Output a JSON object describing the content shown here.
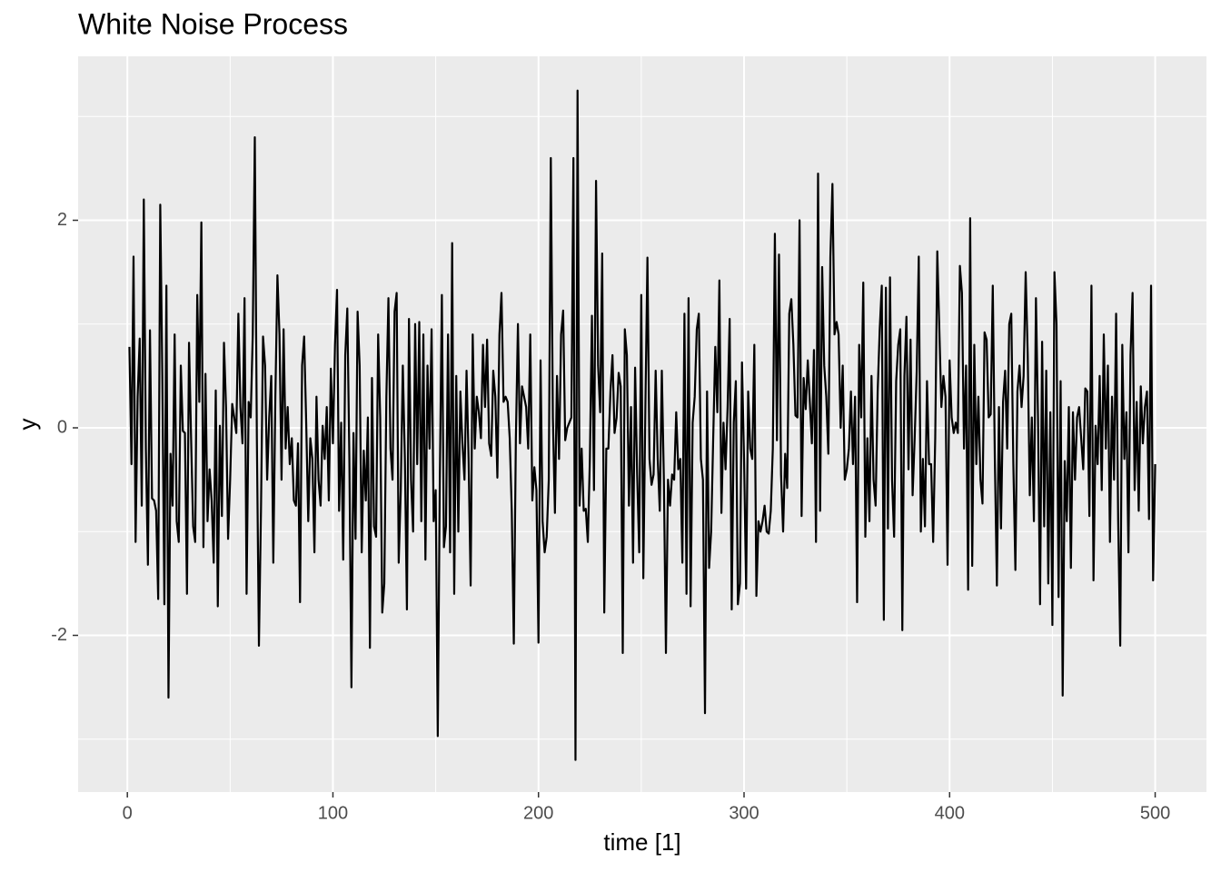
{
  "chart_data": {
    "type": "line",
    "title": "White Noise Process",
    "x_label": "time [1]",
    "y_label": "y",
    "color": "#000000",
    "grid": true,
    "xlim": [
      -23.95,
      524.95
    ],
    "ylim": [
      -3.51,
      3.58
    ],
    "xticks": [
      0,
      100,
      200,
      300,
      400,
      500
    ],
    "yticks": [
      -2,
      0,
      2
    ],
    "xminor": [
      50,
      150,
      250,
      350,
      450
    ],
    "yminor": [
      -3,
      -1,
      1,
      3
    ],
    "x": [
      1,
      2,
      3,
      4,
      5,
      6,
      7,
      8,
      9,
      10,
      11,
      12,
      13,
      14,
      15,
      16,
      17,
      18,
      19,
      20,
      21,
      22,
      23,
      24,
      25,
      26,
      27,
      28,
      29,
      30,
      31,
      32,
      33,
      34,
      35,
      36,
      37,
      38,
      39,
      40,
      41,
      42,
      43,
      44,
      45,
      46,
      47,
      48,
      49,
      50,
      51,
      52,
      53,
      54,
      55,
      56,
      57,
      58,
      59,
      60,
      61,
      62,
      63,
      64,
      65,
      66,
      67,
      68,
      69,
      70,
      71,
      72,
      73,
      74,
      75,
      76,
      77,
      78,
      79,
      80,
      81,
      82,
      83,
      84,
      85,
      86,
      87,
      88,
      89,
      90,
      91,
      92,
      93,
      94,
      95,
      96,
      97,
      98,
      99,
      100,
      101,
      102,
      103,
      104,
      105,
      106,
      107,
      108,
      109,
      110,
      111,
      112,
      113,
      114,
      115,
      116,
      117,
      118,
      119,
      120,
      121,
      122,
      123,
      124,
      125,
      126,
      127,
      128,
      129,
      130,
      131,
      132,
      133,
      134,
      135,
      136,
      137,
      138,
      139,
      140,
      141,
      142,
      143,
      144,
      145,
      146,
      147,
      148,
      149,
      150,
      151,
      152,
      153,
      154,
      155,
      156,
      157,
      158,
      159,
      160,
      161,
      162,
      163,
      164,
      165,
      166,
      167,
      168,
      169,
      170,
      171,
      172,
      173,
      174,
      175,
      176,
      177,
      178,
      179,
      180,
      181,
      182,
      183,
      184,
      185,
      186,
      187,
      188,
      189,
      190,
      191,
      192,
      193,
      194,
      195,
      196,
      197,
      198,
      199,
      200,
      201,
      202,
      203,
      204,
      205,
      206,
      207,
      208,
      209,
      210,
      211,
      212,
      213,
      214,
      215,
      216,
      217,
      218,
      219,
      220,
      221,
      222,
      223,
      224,
      225,
      226,
      227,
      228,
      229,
      230,
      231,
      232,
      233,
      234,
      235,
      236,
      237,
      238,
      239,
      240,
      241,
      242,
      243,
      244,
      245,
      246,
      247,
      248,
      249,
      250,
      251,
      252,
      253,
      254,
      255,
      256,
      257,
      258,
      259,
      260,
      261,
      262,
      263,
      264,
      265,
      266,
      267,
      268,
      269,
      270,
      271,
      272,
      273,
      274,
      275,
      276,
      277,
      278,
      279,
      280,
      281,
      282,
      283,
      284,
      285,
      286,
      287,
      288,
      289,
      290,
      291,
      292,
      293,
      294,
      295,
      296,
      297,
      298,
      299,
      300,
      301,
      302,
      303,
      304,
      305,
      306,
      307,
      308,
      309,
      310,
      311,
      312,
      313,
      314,
      315,
      316,
      317,
      318,
      319,
      320,
      321,
      322,
      323,
      324,
      325,
      326,
      327,
      328,
      329,
      330,
      331,
      332,
      333,
      334,
      335,
      336,
      337,
      338,
      339,
      340,
      341,
      342,
      343,
      344,
      345,
      346,
      347,
      348,
      349,
      350,
      351,
      352,
      353,
      354,
      355,
      356,
      357,
      358,
      359,
      360,
      361,
      362,
      363,
      364,
      365,
      366,
      367,
      368,
      369,
      370,
      371,
      372,
      373,
      374,
      375,
      376,
      377,
      378,
      379,
      380,
      381,
      382,
      383,
      384,
      385,
      386,
      387,
      388,
      389,
      390,
      391,
      392,
      393,
      394,
      395,
      396,
      397,
      398,
      399,
      400,
      401,
      402,
      403,
      404,
      405,
      406,
      407,
      408,
      409,
      410,
      411,
      412,
      413,
      414,
      415,
      416,
      417,
      418,
      419,
      420,
      421,
      422,
      423,
      424,
      425,
      426,
      427,
      428,
      429,
      430,
      431,
      432,
      433,
      434,
      435,
      436,
      437,
      438,
      439,
      440,
      441,
      442,
      443,
      444,
      445,
      446,
      447,
      448,
      449,
      450,
      451,
      452,
      453,
      454,
      455,
      456,
      457,
      458,
      459,
      460,
      461,
      462,
      463,
      464,
      465,
      466,
      467,
      468,
      469,
      470,
      471,
      472,
      473,
      474,
      475,
      476,
      477,
      478,
      479,
      480,
      481,
      482,
      483,
      484,
      485,
      486,
      487,
      488,
      489,
      490,
      491,
      492,
      493,
      494,
      495,
      496,
      497,
      498,
      499,
      500
    ],
    "values": [
      0.78,
      -0.35,
      1.65,
      -1.1,
      0.3,
      0.86,
      -0.75,
      2.2,
      -0.2,
      -1.32,
      0.94,
      -0.68,
      -0.7,
      -0.8,
      -1.65,
      2.15,
      0.5,
      -1.7,
      1.37,
      -2.6,
      -0.25,
      -0.75,
      0.9,
      -0.9,
      -1.1,
      0.6,
      -0.03,
      -0.05,
      -1.6,
      0.82,
      -0.1,
      -0.95,
      -1.1,
      1.28,
      0.25,
      1.98,
      -1.15,
      0.52,
      -0.9,
      -0.4,
      -0.7,
      -1.3,
      0.36,
      -1.72,
      0.02,
      -0.85,
      0.82,
      0.2,
      -1.07,
      -0.5,
      0.23,
      0.1,
      -0.05,
      1.1,
      0.2,
      -0.15,
      1.25,
      -1.6,
      0.25,
      0.1,
      0.9,
      2.8,
      -0.1,
      -2.1,
      -0.8,
      0.88,
      0.6,
      -0.5,
      0.1,
      0.5,
      -1.3,
      0.3,
      1.47,
      0.9,
      -0.5,
      0.95,
      -0.2,
      0.2,
      -0.35,
      -0.1,
      -0.7,
      -0.75,
      -0.15,
      -1.68,
      0.6,
      0.88,
      0.05,
      -0.9,
      -0.1,
      -0.3,
      -1.2,
      0.3,
      -0.5,
      -0.75,
      0.02,
      -0.3,
      0.2,
      -0.7,
      0.57,
      -0.15,
      0.8,
      1.33,
      -0.8,
      0.05,
      -1.27,
      0.7,
      1.15,
      -0.3,
      -2.5,
      -0.05,
      -1.07,
      1.12,
      0.6,
      -1.2,
      -0.22,
      -0.7,
      0.1,
      -2.12,
      0.48,
      -0.95,
      -1.05,
      0.9,
      0.1,
      -1.78,
      -1.5,
      0.3,
      1.25,
      -0.2,
      -0.5,
      1.12,
      1.3,
      -1.3,
      -0.6,
      0.6,
      -0.3,
      -1.75,
      1.05,
      -0.5,
      -1.0,
      1.0,
      -0.35,
      1.02,
      -0.9,
      0.9,
      -1.27,
      0.6,
      -0.2,
      0.95,
      -0.9,
      -0.6,
      -2.97,
      -0.5,
      1.28,
      -1.15,
      -0.95,
      0.9,
      -1.2,
      1.78,
      -1.6,
      0.5,
      -1.0,
      0.35,
      -0.15,
      -0.5,
      0.55,
      -0.3,
      -1.52,
      0.9,
      -0.2,
      0.3,
      0.15,
      -0.1,
      0.8,
      0.2,
      0.85,
      -0.15,
      -0.27,
      0.55,
      0.3,
      -0.48,
      0.9,
      1.3,
      0.25,
      0.3,
      0.25,
      -0.1,
      -0.8,
      -2.08,
      -0.1,
      1.0,
      -0.15,
      0.4,
      0.3,
      0.2,
      -0.2,
      0.9,
      -0.7,
      -0.38,
      -0.6,
      -2.07,
      0.65,
      -0.9,
      -1.2,
      -1.05,
      -0.5,
      2.6,
      0.1,
      -0.82,
      0.5,
      -0.3,
      0.9,
      1.13,
      -0.12,
      0.0,
      0.05,
      0.1,
      2.6,
      -3.2,
      3.25,
      -0.75,
      -0.2,
      -0.8,
      -0.78,
      -1.1,
      -0.3,
      1.08,
      -0.6,
      2.38,
      0.6,
      0.15,
      1.68,
      -1.78,
      -0.2,
      -0.2,
      0.35,
      0.7,
      -0.05,
      0.1,
      0.53,
      0.4,
      -2.17,
      0.95,
      0.7,
      -0.75,
      0.2,
      -1.3,
      0.58,
      -0.45,
      -1.2,
      1.28,
      -1.45,
      0.2,
      1.64,
      -0.3,
      -0.55,
      -0.45,
      0.55,
      -0.3,
      -0.8,
      0.55,
      -0.5,
      -2.17,
      -0.5,
      -0.75,
      -0.45,
      -0.5,
      0.15,
      -0.4,
      -0.3,
      -1.3,
      1.1,
      -1.6,
      1.25,
      -1.72,
      0.05,
      0.3,
      0.95,
      1.1,
      -0.3,
      -0.5,
      -2.75,
      0.35,
      -1.35,
      -1.0,
      -0.1,
      0.78,
      0.15,
      1.42,
      -0.82,
      0.05,
      -0.4,
      0.2,
      1.05,
      -1.75,
      0.05,
      0.45,
      -1.7,
      -1.5,
      0.63,
      -0.3,
      -1.55,
      0.35,
      -0.2,
      -0.3,
      0.8,
      -1.62,
      -0.9,
      -1.0,
      -0.9,
      -0.75,
      -1.0,
      -1.02,
      -0.8,
      -0.2,
      1.87,
      -0.12,
      1.67,
      -0.45,
      -1.0,
      -0.25,
      -0.58,
      1.1,
      1.24,
      0.8,
      0.12,
      0.1,
      2.0,
      -0.85,
      0.48,
      0.18,
      0.65,
      0.25,
      -0.15,
      0.75,
      -1.1,
      2.45,
      -0.8,
      1.55,
      0.6,
      0.3,
      -0.25,
      1.65,
      2.35,
      0.9,
      1.02,
      0.9,
      0.0,
      0.6,
      -0.5,
      -0.4,
      -0.2,
      0.35,
      -0.35,
      0.3,
      -1.68,
      0.8,
      0.1,
      1.4,
      -1.05,
      -0.1,
      -0.9,
      0.5,
      -0.5,
      -0.75,
      0.35,
      0.95,
      1.37,
      -1.85,
      1.35,
      -0.97,
      1.45,
      -0.5,
      -1.05,
      0.45,
      0.8,
      0.95,
      -1.95,
      0.5,
      1.07,
      -0.4,
      0.85,
      -0.65,
      -0.1,
      0.55,
      1.65,
      -1.0,
      -0.3,
      -0.95,
      0.45,
      -0.35,
      -0.35,
      -1.1,
      -0.1,
      1.7,
      0.95,
      0.2,
      0.5,
      0.3,
      -1.32,
      0.65,
      0.1,
      -0.05,
      0.05,
      -0.05,
      1.56,
      1.3,
      -0.2,
      0.6,
      -1.56,
      2.02,
      -1.33,
      0.8,
      -0.35,
      0.3,
      -0.5,
      -0.73,
      0.92,
      0.85,
      0.1,
      0.13,
      1.37,
      -0.3,
      -1.52,
      0.2,
      -0.97,
      0.25,
      0.55,
      -0.2,
      1.0,
      1.1,
      -0.35,
      -1.37,
      0.35,
      0.6,
      0.2,
      0.5,
      1.5,
      0.7,
      -0.65,
      0.1,
      -0.9,
      1.25,
      0.1,
      -1.7,
      0.83,
      -0.95,
      0.55,
      -1.5,
      0.15,
      -1.9,
      1.5,
      1.0,
      -1.63,
      0.45,
      -2.58,
      -0.32,
      -0.9,
      0.2,
      -1.35,
      0.15,
      -0.5,
      0.1,
      0.2,
      -0.1,
      -0.4,
      0.38,
      0.35,
      -0.85,
      1.37,
      -1.47,
      0.02,
      -0.35,
      0.5,
      -0.6,
      0.9,
      -0.2,
      0.6,
      -1.1,
      0.3,
      -0.5,
      1.1,
      -0.9,
      -2.1,
      0.8,
      -0.3,
      0.15,
      -1.2,
      0.7,
      1.3,
      -0.6,
      0.25,
      -0.8,
      0.4,
      -0.15,
      0.2,
      0.35,
      -0.88,
      1.37,
      -1.47,
      -0.35
    ]
  }
}
